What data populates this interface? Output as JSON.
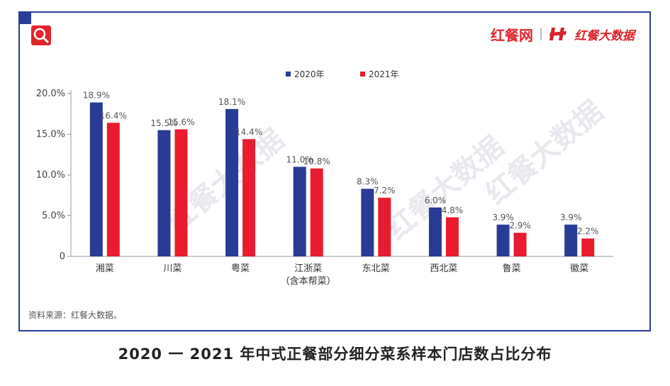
{
  "brand": {
    "name": "红餐网",
    "data_brand": "红餐大数据"
  },
  "source": "资料来源：红餐大数据。",
  "caption": "2020 一 2021 年中式正餐部分细分菜系样本门店数占比分布",
  "watermarks": [
    "红餐大数据",
    "红餐大数据",
    "红餐大数据"
  ],
  "colors": {
    "s2020": "#283c96",
    "s2021": "#e81c2e",
    "frame": "#2a3d99",
    "brand": "#e0262c"
  },
  "icons": [
    "search-icon",
    "h-logo-icon"
  ],
  "chart_data": {
    "type": "bar",
    "categories": [
      "湘菜",
      "川菜",
      "粤菜",
      "江浙菜\n（含本帮菜）",
      "东北菜",
      "西北菜",
      "鲁菜",
      "徽菜"
    ],
    "series": [
      {
        "name": "2020年",
        "values": [
          18.9,
          15.5,
          18.1,
          11.0,
          8.3,
          6.0,
          3.9,
          3.9
        ],
        "labels": [
          "18.9%",
          "15.5%",
          "18.1%",
          "11.0%",
          "8.3%",
          "6.0%",
          "3.9%",
          "3.9%"
        ]
      },
      {
        "name": "2021年",
        "values": [
          16.4,
          15.6,
          14.4,
          10.8,
          7.2,
          4.8,
          2.9,
          2.2
        ],
        "labels": [
          "16.4%",
          "15.6%",
          "14.4%",
          "10.8%",
          "7.2%",
          "4.8%",
          "2.9%",
          "2.2%"
        ]
      }
    ],
    "yticks": [
      "0",
      "5.0%",
      "10.0%",
      "15.0%",
      "20.0%"
    ],
    "ytick_values": [
      0,
      5,
      10,
      15,
      20
    ],
    "ylim": [
      0,
      20
    ],
    "legend_position": "top-center",
    "grid": false
  }
}
